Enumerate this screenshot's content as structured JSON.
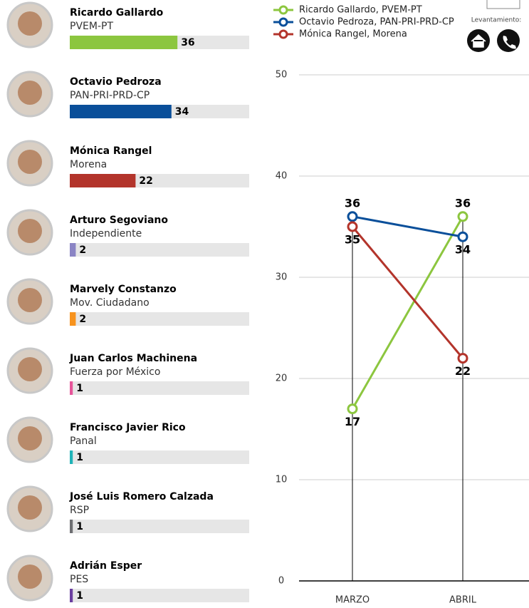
{
  "levantamiento_label": "Levantamiento:",
  "chart_data": [
    {
      "type": "hbar",
      "categories": [
        "Ricardo Gallardo",
        "Octavio Pedroza",
        "Mónica Rangel",
        "Arturo Segoviano",
        "Marvely Constanzo",
        "Juan Carlos Machinena",
        "Francisco Javier Rico",
        "José Luis Romero Calzada",
        "Adrián Esper"
      ],
      "parties": [
        "PVEM-PT",
        "PAN-PRI-PRD-CP",
        "Morena",
        "Independiente",
        "Mov. Ciudadano",
        "Fuerza por México",
        "Panal",
        "RSP",
        "PES"
      ],
      "values": [
        36,
        34,
        22,
        2,
        2,
        1,
        1,
        1,
        1
      ],
      "colors": [
        "#8cc63f",
        "#0a4f9a",
        "#b3342b",
        "#8a84c4",
        "#f7931e",
        "#e6559a",
        "#1fb3b8",
        "#6d6e71",
        "#6b3fa0"
      ],
      "xlim": [
        0,
        60
      ]
    },
    {
      "type": "line",
      "x": [
        "MARZO",
        "ABRIL"
      ],
      "series": [
        {
          "name": "Ricardo Gallardo, PVEM-PT",
          "color": "#8cc63f",
          "values": [
            17,
            36
          ]
        },
        {
          "name": "Octavio Pedroza, PAN-PRI-PRD-CP",
          "color": "#0a4f9a",
          "values": [
            36,
            34
          ]
        },
        {
          "name": "Mónica Rangel, Morena",
          "color": "#b3342b",
          "values": [
            35,
            22
          ]
        }
      ],
      "ylim": [
        0,
        50
      ],
      "yticks": [
        0,
        10,
        20,
        30,
        40,
        50
      ],
      "grid": true
    }
  ]
}
